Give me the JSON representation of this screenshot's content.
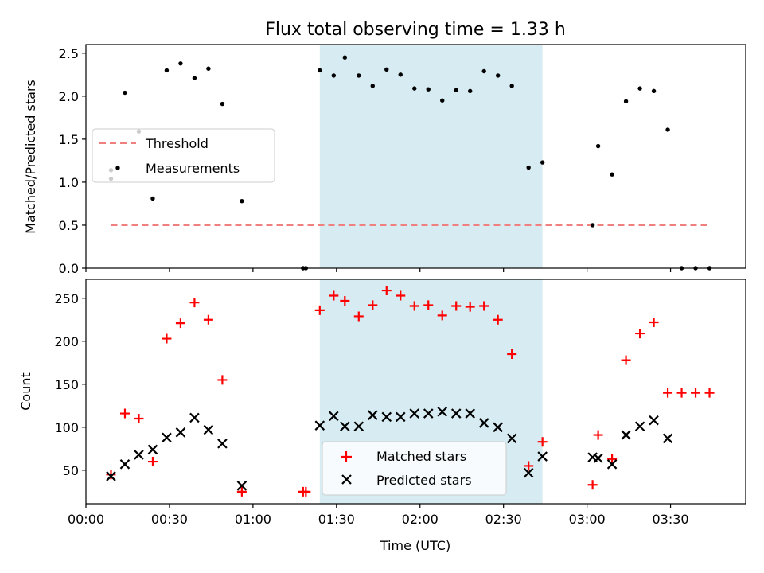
{
  "title": "Flux total observing time = 1.33 h",
  "colors": {
    "threshold": "#f08080",
    "measurement": "#000000",
    "matched": "#ff0000",
    "predicted": "#000000",
    "shade": "#add8e6"
  },
  "chart_data": [
    {
      "type": "scatter",
      "panel": "top",
      "ylabel": "Matched/Predicted stars",
      "xlim": [
        "00:00",
        "03:57"
      ],
      "ylim": [
        0,
        2.6
      ],
      "yticks": [
        "0.0",
        "0.5",
        "1.0",
        "1.5",
        "2.0",
        "2.5"
      ],
      "shaded_region": [
        "01:24",
        "02:44"
      ],
      "legend": [
        "Threshold",
        "Measurements"
      ],
      "legend_position": "center-left",
      "threshold": {
        "name": "Threshold",
        "value": 0.5,
        "x": [
          "00:09",
          "03:44"
        ]
      },
      "series": [
        {
          "name": "Measurements",
          "x": [
            "00:09",
            "00:09",
            "00:14",
            "00:19",
            "00:24",
            "00:29",
            "00:34",
            "00:39",
            "00:44",
            "00:49",
            "00:56",
            "01:18",
            "01:19",
            "01:24",
            "01:29",
            "01:33",
            "01:38",
            "01:43",
            "01:48",
            "01:53",
            "01:58",
            "02:03",
            "02:08",
            "02:13",
            "02:18",
            "02:23",
            "02:28",
            "02:33",
            "02:39",
            "02:44",
            "03:02",
            "03:04",
            "03:09",
            "03:14",
            "03:19",
            "03:24",
            "03:29",
            "03:34",
            "03:39",
            "03:44"
          ],
          "y": [
            1.04,
            1.14,
            2.04,
            1.59,
            0.81,
            2.3,
            2.38,
            2.21,
            2.32,
            1.91,
            0.78,
            0.0,
            0.0,
            2.3,
            2.24,
            2.45,
            2.24,
            2.12,
            2.31,
            2.25,
            2.09,
            2.08,
            1.95,
            2.07,
            2.06,
            2.29,
            2.24,
            2.12,
            1.17,
            1.23,
            0.5,
            1.42,
            1.09,
            1.94,
            2.09,
            2.06,
            1.61,
            0.0,
            0.0,
            0.0
          ]
        }
      ]
    },
    {
      "type": "scatter",
      "panel": "bottom",
      "xlabel": "Time (UTC)",
      "ylabel": "Count",
      "xlim": [
        "00:00",
        "03:57"
      ],
      "ylim": [
        11,
        272
      ],
      "yticks": [
        "50",
        "100",
        "150",
        "200",
        "250"
      ],
      "xticks": [
        "00:00",
        "00:30",
        "01:00",
        "01:30",
        "02:00",
        "02:30",
        "03:00",
        "03:30"
      ],
      "shaded_region": [
        "01:24",
        "02:44"
      ],
      "legend": [
        "Matched stars",
        "Predicted stars"
      ],
      "legend_position": "lower-center",
      "series": [
        {
          "name": "Matched stars",
          "marker": "+",
          "x": [
            "00:09",
            "00:14",
            "00:19",
            "00:24",
            "00:29",
            "00:34",
            "00:39",
            "00:44",
            "00:49",
            "00:56",
            "01:18",
            "01:19",
            "01:24",
            "01:29",
            "01:33",
            "01:38",
            "01:43",
            "01:48",
            "01:53",
            "01:58",
            "02:03",
            "02:08",
            "02:13",
            "02:18",
            "02:23",
            "02:28",
            "02:33",
            "02:39",
            "02:44",
            "03:02",
            "03:04",
            "03:09",
            "03:14",
            "03:19",
            "03:24",
            "03:29",
            "03:34",
            "03:39",
            "03:44"
          ],
          "y": [
            45,
            116,
            110,
            60,
            203,
            221,
            245,
            225,
            155,
            25,
            25,
            25,
            236,
            253,
            247,
            229,
            242,
            259,
            253,
            241,
            242,
            230,
            241,
            240,
            241,
            225,
            185,
            55,
            83,
            33,
            91,
            63,
            178,
            209,
            222,
            140,
            140,
            140,
            140
          ]
        },
        {
          "name": "Predicted stars",
          "marker": "x",
          "x": [
            "00:09",
            "00:14",
            "00:19",
            "00:24",
            "00:29",
            "00:34",
            "00:39",
            "00:44",
            "00:49",
            "00:56",
            "01:24",
            "01:29",
            "01:33",
            "01:38",
            "01:43",
            "01:48",
            "01:53",
            "01:58",
            "02:03",
            "02:08",
            "02:13",
            "02:18",
            "02:23",
            "02:28",
            "02:33",
            "02:39",
            "02:44",
            "03:02",
            "03:04",
            "03:09",
            "03:14",
            "03:19",
            "03:24",
            "03:29"
          ],
          "y": [
            43,
            57,
            68,
            74,
            88,
            94,
            111,
            97,
            81,
            32,
            102,
            113,
            101,
            101,
            114,
            112,
            112,
            116,
            116,
            118,
            116,
            116,
            105,
            100,
            87,
            47,
            66,
            65,
            64,
            57,
            91,
            101,
            108,
            87
          ]
        }
      ]
    }
  ]
}
